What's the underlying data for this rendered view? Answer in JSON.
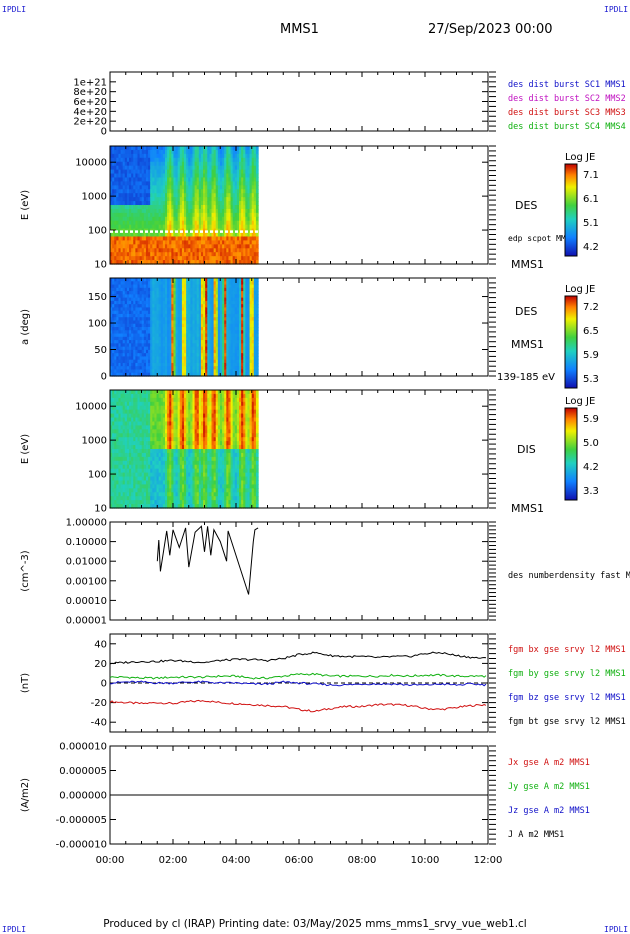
{
  "corner_label": "IPDLI",
  "header": {
    "title": "MMS1",
    "date": "27/Sep/2023 00:00"
  },
  "footer": {
    "text": "Produced by cl (IRAP)   Printing date: 03/May/2025   mms_mms1_srvy_vue_web1.cl"
  },
  "chart_data": [
    {
      "type": "line",
      "panel": "dist-burst",
      "ylim": [
        0,
        1.2e+21
      ],
      "yticks": [
        "1e+21",
        "8e+20",
        "6e+20",
        "4e+20",
        "2e+20",
        "0"
      ],
      "series": [
        {
          "name": "des dist burst SC1 MMS1",
          "color": "#1010c8",
          "values": []
        },
        {
          "name": "des dist burst SC2 MMS2",
          "color": "#c010c0",
          "values": []
        },
        {
          "name": "des dist burst SC3 MMS3",
          "color": "#d01010",
          "values": []
        },
        {
          "name": "des dist burst SC4 MMS4",
          "color": "#10b010",
          "values": []
        }
      ]
    },
    {
      "type": "heatmap",
      "panel": "des-energy",
      "ylabel": "E (eV)",
      "yscale": "log",
      "ylim": [
        10,
        30000
      ],
      "yticks": [
        "10000",
        "1000",
        "100",
        "10"
      ],
      "species_label": "DES",
      "spacecraft_label": "MMS1",
      "overlay_label": "edp scpot MMS1",
      "colorbar": {
        "title": "Log JE",
        "ticks": [
          "7.1",
          "6.1",
          "5.1",
          "4.2"
        ]
      },
      "data_end_hours": 4.7,
      "overlay_value": 90
    },
    {
      "type": "heatmap",
      "panel": "des-pitch",
      "ylabel": "a (deg)",
      "ylim": [
        0,
        185
      ],
      "yticks": [
        "150",
        "100",
        "50",
        "0"
      ],
      "species_label": "DES",
      "spacecraft_label": "MMS1",
      "energy_range_label": "139-185 eV",
      "colorbar": {
        "title": "Log JE",
        "ticks": [
          "7.2",
          "6.5",
          "5.9",
          "5.3"
        ]
      },
      "data_end_hours": 4.7
    },
    {
      "type": "heatmap",
      "panel": "dis-energy",
      "ylabel": "E (eV)",
      "yscale": "log",
      "ylim": [
        10,
        30000
      ],
      "yticks": [
        "10000",
        "1000",
        "100",
        "10"
      ],
      "species_label": "DIS",
      "spacecraft_label": "MMS1",
      "colorbar": {
        "title": "Log JE",
        "ticks": [
          "5.9",
          "5.0",
          "4.2",
          "3.3"
        ]
      },
      "data_end_hours": 4.7
    },
    {
      "type": "line",
      "panel": "density",
      "ylabel": "(cm^-3)",
      "yscale": "log",
      "ylim": [
        0.0001,
        1
      ],
      "yticks": [
        "1.00000",
        "0.10000",
        "0.01000",
        "0.00100",
        "0.00010",
        "0.00001"
      ],
      "series": [
        {
          "name": "des numberdensity fast M",
          "color": "#000000",
          "x": [
            1.5,
            1.55,
            1.6,
            1.8,
            1.9,
            2.0,
            2.2,
            2.4,
            2.5,
            2.7,
            2.9,
            3.0,
            3.1,
            3.2,
            3.3,
            3.5,
            3.7,
            3.75,
            4.4,
            4.55,
            4.6,
            4.7
          ],
          "y": [
            0.01,
            0.12,
            0.003,
            0.35,
            0.02,
            0.4,
            0.05,
            0.5,
            0.005,
            0.3,
            0.6,
            0.03,
            0.6,
            0.02,
            0.4,
            0.1,
            0.01,
            0.35,
            0.0002,
            0.1,
            0.4,
            0.5
          ]
        }
      ]
    },
    {
      "type": "line",
      "panel": "fgm",
      "ylabel": "(nT)",
      "ylim": [
        -50,
        50
      ],
      "yticks": [
        "40",
        "20",
        "0",
        "-20",
        "-40"
      ],
      "x": [
        0,
        0.5,
        1,
        1.5,
        2,
        2.5,
        3,
        3.5,
        4,
        4.5,
        5,
        5.5,
        6,
        6.5,
        7,
        7.5,
        8,
        8.5,
        9,
        9.5,
        10,
        10.5,
        11,
        11.5,
        12
      ],
      "series": [
        {
          "name": "fgm bx gse srvy l2 MMS1",
          "color": "#d01010",
          "values": [
            -19,
            -20,
            -21,
            -20,
            -21,
            -19,
            -18,
            -20,
            -21,
            -22,
            -23,
            -24,
            -27,
            -29,
            -26,
            -24,
            -24,
            -22,
            -22,
            -23,
            -26,
            -27,
            -25,
            -23,
            -22
          ]
        },
        {
          "name": "fgm by gse srvy l2 MMS1",
          "color": "#10b010",
          "values": [
            6,
            6,
            5,
            5,
            6,
            6,
            6,
            7,
            7,
            5,
            5,
            7,
            9,
            9,
            7,
            7,
            7,
            7,
            8,
            7,
            8,
            8,
            7,
            7,
            7
          ]
        },
        {
          "name": "fgm bz gse srvy l2 MMS1",
          "color": "#1010c8",
          "values": [
            0,
            1,
            1,
            0,
            0,
            1,
            1,
            0,
            0,
            -1,
            -1,
            1,
            0,
            -1,
            -2,
            -2,
            -1,
            -1,
            -1,
            -2,
            -2,
            -1,
            -2,
            -1,
            -2
          ]
        },
        {
          "name": "fgm bt gse srvy l2 MMS1",
          "color": "#000000",
          "values": [
            20,
            21,
            22,
            22,
            23,
            22,
            21,
            23,
            24,
            24,
            23,
            25,
            29,
            31,
            28,
            27,
            27,
            26,
            27,
            27,
            30,
            31,
            28,
            26,
            25
          ]
        }
      ]
    },
    {
      "type": "line",
      "panel": "current",
      "ylabel": "(A/m2)",
      "ylim": [
        -1e-05,
        1e-05
      ],
      "yticks": [
        "0.000010",
        "0.000005",
        "0.000000",
        "-0.000005",
        "-0.000010"
      ],
      "xticks": [
        "00:00",
        "02:00",
        "04:00",
        "06:00",
        "08:00",
        "10:00",
        "12:00"
      ],
      "series": [
        {
          "name": "Jx gse A m2 MMS1",
          "color": "#d01010",
          "values": [
            0,
            0
          ]
        },
        {
          "name": "Jy gse A m2 MMS1",
          "color": "#10b010",
          "values": [
            0,
            0
          ]
        },
        {
          "name": "Jz gse A m2 MMS1",
          "color": "#1010c8",
          "values": [
            0,
            0
          ]
        },
        {
          "name": "J A m2 MMS1",
          "color": "#000000",
          "values": [
            0,
            0
          ]
        }
      ]
    }
  ]
}
